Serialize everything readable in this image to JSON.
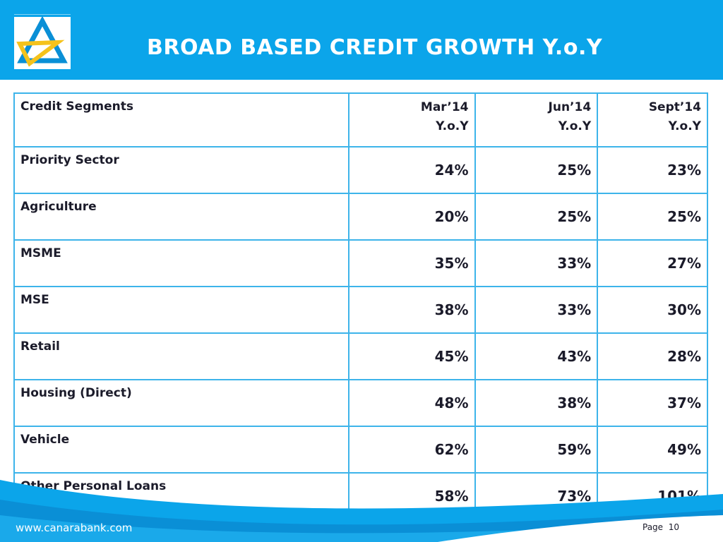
{
  "header": {
    "title": "BROAD BASED CREDIT GROWTH Y.o.Y"
  },
  "table": {
    "columns": [
      [
        "Credit Segments"
      ],
      [
        "Mar’14",
        "Y.o.Y"
      ],
      [
        "Jun’14",
        "Y.o.Y"
      ],
      [
        "Sept’14",
        "Y.o.Y"
      ]
    ],
    "rows": [
      [
        "Priority Sector",
        "24%",
        "25%",
        "23%"
      ],
      [
        "Agriculture",
        "20%",
        "25%",
        "25%"
      ],
      [
        "MSME",
        "35%",
        "33%",
        "27%"
      ],
      [
        "MSE",
        "38%",
        "33%",
        "30%"
      ],
      [
        "Retail",
        "45%",
        "43%",
        "28%"
      ],
      [
        "Housing (Direct)",
        "48%",
        "38%",
        "37%"
      ],
      [
        "Vehicle",
        "62%",
        "59%",
        "49%"
      ],
      [
        "Other Personal Loans",
        "58%",
        "73%",
        "101%"
      ]
    ]
  },
  "footer": {
    "website": "www.canarabank.com",
    "page_label": "Page",
    "page_number": "10"
  }
}
